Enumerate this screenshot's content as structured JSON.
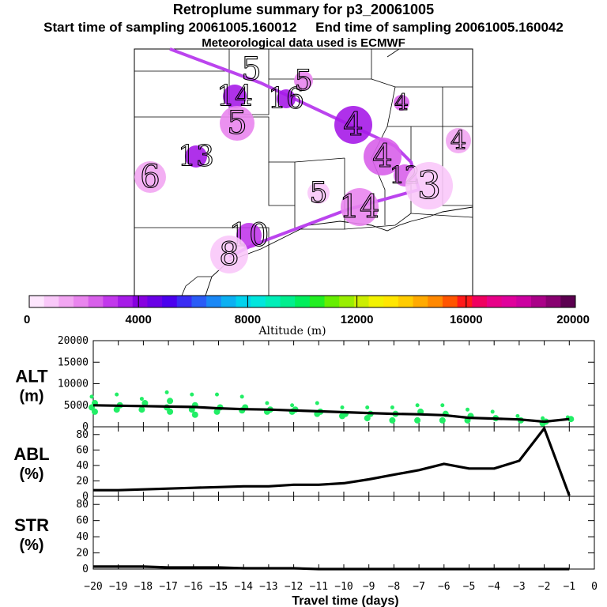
{
  "header": {
    "title": "Retroplume summary for p3_20061005",
    "start_label": "Start time of sampling 20061005.160012",
    "end_label": "End time of sampling 20061005.160042",
    "met_label": "Meteorological data used is ECMWF"
  },
  "colorbar": {
    "label": "Altitude (m)",
    "ticks": [
      0,
      4000,
      8000,
      12000,
      16000,
      20000
    ],
    "tick_labels": [
      "0",
      "4000",
      "8000",
      "12000",
      "16000",
      "20000"
    ],
    "colors": [
      "#fde6fd",
      "#f9c8f9",
      "#f2a6f2",
      "#e985ee",
      "#d860ea",
      "#c238ec",
      "#a61be8",
      "#8700e0",
      "#6a00e6",
      "#4b00ee",
      "#3a2cf4",
      "#2a5cf7",
      "#1a88f6",
      "#0cb0f2",
      "#00d2ee",
      "#00e6dd",
      "#00eeb8",
      "#00ee8e",
      "#00ee5c",
      "#22ee22",
      "#66ee00",
      "#99ee00",
      "#ccee00",
      "#f2f200",
      "#ffe600",
      "#ffcc00",
      "#ffaa00",
      "#ff8800",
      "#ff5500",
      "#ff1a1a",
      "#f00060",
      "#e80088",
      "#e0009c",
      "#cc00a0",
      "#aa0088",
      "#880070",
      "#5c0050"
    ]
  },
  "map": {
    "markers": [
      {
        "label": "5"
      },
      {
        "label": "14"
      },
      {
        "label": "16"
      },
      {
        "label": "5"
      },
      {
        "label": "5"
      },
      {
        "label": "4"
      },
      {
        "label": "4"
      },
      {
        "label": "4"
      },
      {
        "label": "4"
      },
      {
        "label": "13"
      },
      {
        "label": "6"
      },
      {
        "label": "5"
      },
      {
        "label": "14"
      },
      {
        "label": "12"
      },
      {
        "label": "3"
      },
      {
        "label": "10"
      },
      {
        "label": "8"
      }
    ]
  },
  "chart_data": [
    {
      "type": "line",
      "title": "ALT (m)",
      "ylabel": "ALT\n(m)",
      "yticks": [
        0,
        5000,
        10000,
        15000,
        20000
      ],
      "ylim": [
        0,
        20000
      ],
      "xlim": [
        -20,
        0
      ],
      "series": [
        {
          "name": "median altitude",
          "x": [
            -20,
            -19,
            -18,
            -17,
            -16,
            -15,
            -14,
            -13,
            -12,
            -11,
            -10,
            -9,
            -8,
            -7,
            -6,
            -5,
            -4,
            -3,
            -2,
            -1
          ],
          "values": [
            5000,
            4900,
            4800,
            4700,
            4600,
            4300,
            4100,
            4000,
            3800,
            3600,
            3400,
            3200,
            3000,
            2900,
            2700,
            2100,
            1900,
            1700,
            1200,
            1800
          ]
        }
      ],
      "scatter": [
        {
          "x": -20,
          "values": [
            7000,
            5500,
            4500,
            3500
          ]
        },
        {
          "x": -19,
          "values": [
            7500,
            5000,
            4000
          ]
        },
        {
          "x": -18,
          "values": [
            6500,
            5500,
            4000
          ]
        },
        {
          "x": -17,
          "values": [
            8000,
            6000,
            4500,
            3500
          ]
        },
        {
          "x": -16,
          "values": [
            7500,
            5000,
            4000,
            2800
          ]
        },
        {
          "x": -15,
          "values": [
            7500,
            4500,
            3500
          ]
        },
        {
          "x": -14,
          "values": [
            7000,
            4500,
            3800
          ]
        },
        {
          "x": -13,
          "values": [
            5500,
            4000,
            3500
          ]
        },
        {
          "x": -12,
          "values": [
            5000,
            4000,
            3500
          ]
        },
        {
          "x": -11,
          "values": [
            5500,
            3500,
            3000
          ]
        },
        {
          "x": -10,
          "values": [
            4500,
            3000,
            2500
          ]
        },
        {
          "x": -9,
          "values": [
            4500,
            3000,
            2000
          ]
        },
        {
          "x": -8,
          "values": [
            4500,
            3000,
            1500
          ]
        },
        {
          "x": -7,
          "values": [
            5000,
            3500,
            1500
          ]
        },
        {
          "x": -6,
          "values": [
            5000,
            3000,
            1500
          ]
        },
        {
          "x": -5,
          "values": [
            4000,
            2500,
            1500
          ]
        },
        {
          "x": -4,
          "values": [
            3500,
            2000
          ]
        },
        {
          "x": -3,
          "values": [
            2500,
            1500
          ]
        },
        {
          "x": -2,
          "values": [
            2000,
            1200,
            800
          ]
        },
        {
          "x": -1,
          "values": [
            2200,
            1800
          ]
        }
      ]
    },
    {
      "type": "line",
      "title": "ABL (%)",
      "ylabel": "ABL\n(%)",
      "yticks": [
        0,
        20,
        40,
        60,
        80
      ],
      "ylim": [
        0,
        90
      ],
      "xlim": [
        -20,
        0
      ],
      "series": [
        {
          "name": "ABL",
          "x": [
            -20,
            -19,
            -18,
            -17,
            -16,
            -15,
            -14,
            -13,
            -12,
            -11,
            -10,
            -9,
            -8,
            -7,
            -6,
            -5,
            -4,
            -3,
            -2,
            -1
          ],
          "values": [
            8,
            8,
            9,
            10,
            11,
            12,
            13,
            13,
            15,
            15,
            17,
            22,
            28,
            34,
            42,
            36,
            36,
            46,
            88,
            1
          ]
        }
      ]
    },
    {
      "type": "line",
      "title": "STR (%)",
      "ylabel": "STR\n(%)",
      "yticks": [
        0,
        20,
        40,
        60,
        80
      ],
      "ylim": [
        0,
        90
      ],
      "xlim": [
        -20,
        0
      ],
      "series": [
        {
          "name": "STR",
          "x": [
            -20,
            -19,
            -18,
            -17,
            -16,
            -15,
            -14,
            -13,
            -12,
            -11,
            -10,
            -9,
            -8,
            -7,
            -6,
            -5,
            -4,
            -3,
            -2,
            -1
          ],
          "values": [
            3,
            3,
            3,
            2,
            2,
            2,
            1,
            1,
            1,
            0,
            0,
            0,
            0,
            0,
            0,
            0,
            0,
            0,
            0,
            0
          ]
        }
      ]
    }
  ],
  "xaxis": {
    "label": "Travel time (days)",
    "ticks": [
      -20,
      -19,
      -18,
      -17,
      -16,
      -15,
      -14,
      -13,
      -12,
      -11,
      -10,
      -9,
      -8,
      -7,
      -6,
      -5,
      -4,
      -3,
      -2,
      -1,
      0
    ],
    "tick_labels": [
      "−20",
      "−19",
      "−18",
      "−17",
      "−16",
      "−15",
      "−14",
      "−13",
      "−12",
      "−11",
      "−10",
      "−9",
      "−8",
      "−7",
      "−6",
      "−5",
      "−4",
      "−3",
      "−2",
      "−1",
      "0"
    ]
  },
  "panel_labels": {
    "alt": [
      "ALT",
      "(m)"
    ],
    "abl": [
      "ABL",
      "(%)"
    ],
    "str": [
      "STR",
      "(%)"
    ]
  },
  "colors": {
    "scatter": "#22ee66",
    "line": "#000000",
    "path": "#bb44ee"
  }
}
